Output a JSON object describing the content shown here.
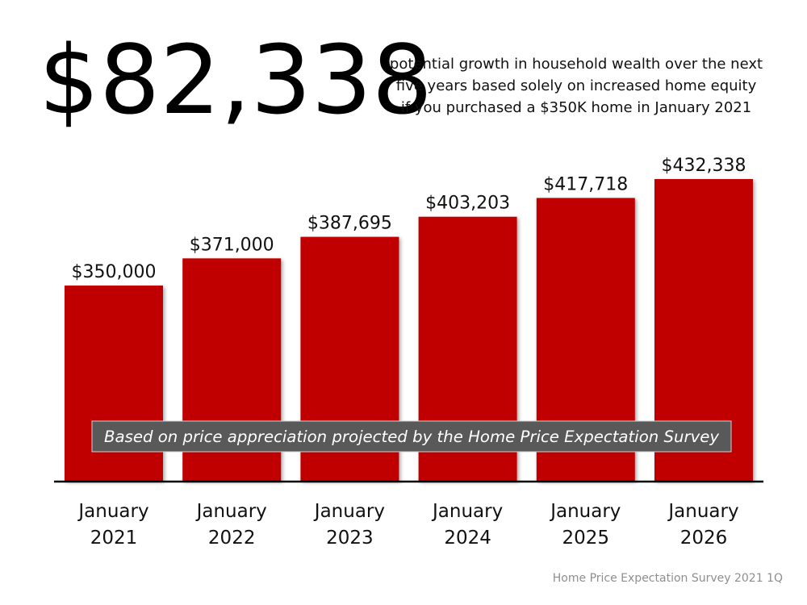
{
  "headline": "$82,338",
  "subtitle": [
    "potential growth in household wealth over the next",
    "five years based solely on increased home equity",
    "if you purchased a $350K home in January 2021"
  ],
  "note": "Based on price appreciation projected by the Home Price Expectation Survey",
  "source": "Home Price Expectation Survey 2021 1Q",
  "colors": {
    "bar": "#c00000",
    "axis": "#000000",
    "note_bg": "#595959",
    "note_text": "#ffffff"
  },
  "chart_data": {
    "type": "bar",
    "categories": [
      [
        "January",
        "2021"
      ],
      [
        "January",
        "2022"
      ],
      [
        "January",
        "2023"
      ],
      [
        "January",
        "2024"
      ],
      [
        "January",
        "2025"
      ],
      [
        "January",
        "2026"
      ]
    ],
    "values": [
      350000,
      371000,
      387695,
      403203,
      417718,
      432338
    ],
    "value_labels": [
      "$350,000",
      "$371,000",
      "$387,695",
      "$403,203",
      "$417,718",
      "$432,338"
    ],
    "title": "",
    "xlabel": "",
    "ylabel": "",
    "grid": false,
    "y_axis_visible": false
  }
}
